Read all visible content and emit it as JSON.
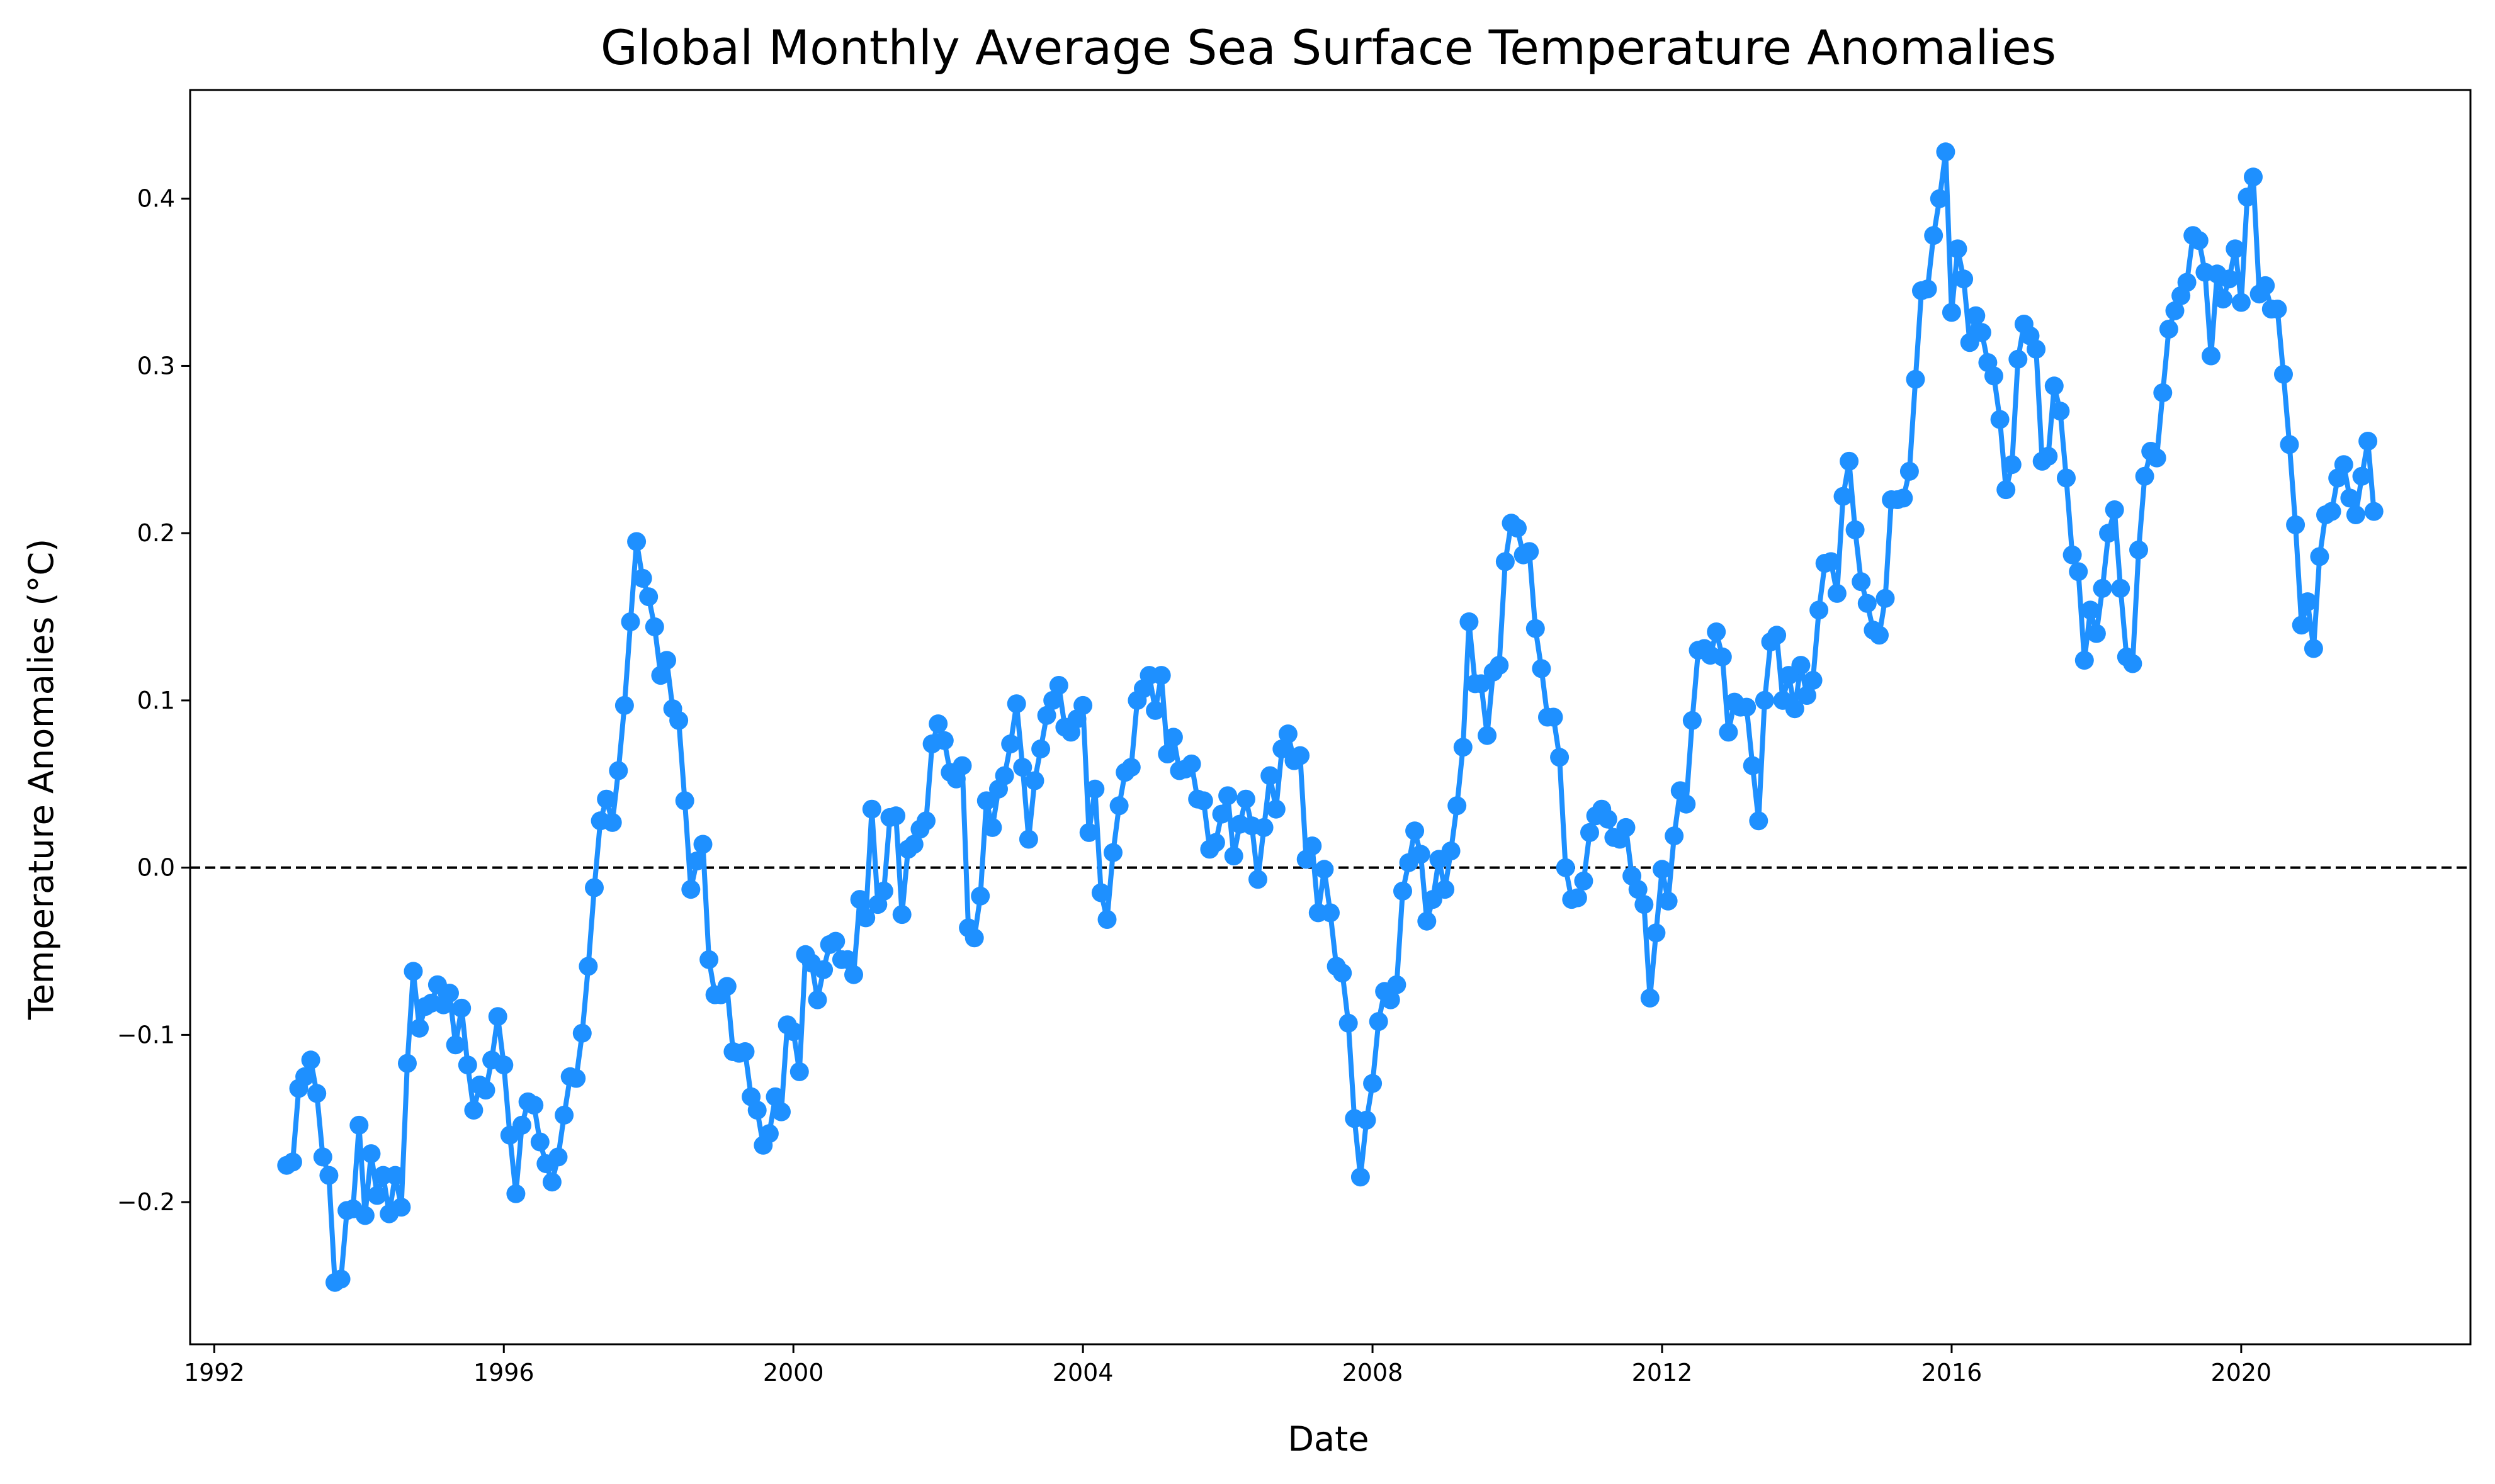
{
  "chart_data": {
    "type": "line",
    "title": "Global Monthly Average Sea Surface Temperature Anomalies",
    "xlabel": "Date",
    "ylabel": "Temperature Anomalies (°C)",
    "xlim": [
      "1991-09",
      "2023-03"
    ],
    "ylim": [
      -0.285,
      0.465
    ],
    "x_ticks": [
      1992,
      1996,
      2000,
      2004,
      2008,
      2012,
      2016,
      2020
    ],
    "x_tick_labels": [
      "1992",
      "1996",
      "2000",
      "2004",
      "2008",
      "2012",
      "2016",
      "2020"
    ],
    "y_ticks": [
      -0.2,
      -0.1,
      0.0,
      0.1,
      0.2,
      0.3,
      0.4
    ],
    "y_tick_labels": [
      "−0.2",
      "−0.1",
      "0.0",
      "0.1",
      "0.2",
      "0.3",
      "0.4"
    ],
    "reference_line": {
      "y": 0.0,
      "style": "dashed",
      "color": "#000000"
    },
    "grid": false,
    "legend": "none",
    "colors": {
      "series": "#1e90ff"
    },
    "series": [
      {
        "start": "1993-01",
        "frequency": "monthly",
        "values": [
          -0.178,
          -0.176,
          -0.132,
          -0.125,
          -0.115,
          -0.135,
          -0.173,
          -0.184,
          -0.248,
          -0.246,
          -0.205,
          -0.204,
          -0.154,
          -0.208,
          -0.171,
          -0.196,
          -0.184,
          -0.207,
          -0.184,
          -0.203,
          -0.117,
          -0.062,
          -0.096,
          -0.083,
          -0.081,
          -0.07,
          -0.082,
          -0.075,
          -0.106,
          -0.084,
          -0.118,
          -0.145,
          -0.13,
          -0.133,
          -0.115,
          -0.089,
          -0.118,
          -0.16,
          -0.195,
          -0.154,
          -0.14,
          -0.142,
          -0.164,
          -0.177,
          -0.188,
          -0.173,
          -0.148,
          -0.125,
          -0.126,
          -0.099,
          -0.059,
          -0.012,
          0.028,
          0.041,
          0.027,
          0.058,
          0.097,
          0.147,
          0.195,
          0.173,
          0.162,
          0.144,
          0.115,
          0.124,
          0.095,
          0.088,
          0.04,
          -0.013,
          0.004,
          0.014,
          -0.055,
          -0.076,
          -0.076,
          -0.071,
          -0.11,
          -0.111,
          -0.11,
          -0.137,
          -0.145,
          -0.166,
          -0.159,
          -0.137,
          -0.146,
          -0.094,
          -0.098,
          -0.122,
          -0.052,
          -0.057,
          -0.079,
          -0.061,
          -0.046,
          -0.044,
          -0.055,
          -0.055,
          -0.064,
          -0.019,
          -0.03,
          0.035,
          -0.022,
          -0.014,
          0.03,
          0.031,
          -0.028,
          0.011,
          0.014,
          0.023,
          0.028,
          0.074,
          0.086,
          0.076,
          0.057,
          0.053,
          0.061,
          -0.036,
          -0.042,
          -0.017,
          0.04,
          0.024,
          0.047,
          0.055,
          0.074,
          0.098,
          0.06,
          0.017,
          0.052,
          0.071,
          0.091,
          0.1,
          0.109,
          0.084,
          0.081,
          0.089,
          0.097,
          0.021,
          0.047,
          -0.015,
          -0.031,
          0.009,
          0.037,
          0.057,
          0.06,
          0.1,
          0.107,
          0.115,
          0.094,
          0.115,
          0.068,
          0.078,
          0.058,
          0.059,
          0.062,
          0.041,
          0.04,
          0.011,
          0.015,
          0.032,
          0.043,
          0.007,
          0.026,
          0.041,
          0.025,
          -0.007,
          0.024,
          0.055,
          0.035,
          0.071,
          0.08,
          0.064,
          0.067,
          0.005,
          0.013,
          -0.027,
          -0.001,
          -0.027,
          -0.059,
          -0.063,
          -0.093,
          -0.15,
          -0.185,
          -0.151,
          -0.129,
          -0.092,
          -0.074,
          -0.079,
          -0.07,
          -0.014,
          0.003,
          0.022,
          0.008,
          -0.032,
          -0.019,
          0.005,
          -0.013,
          0.01,
          0.037,
          0.072,
          0.147,
          0.11,
          0.11,
          0.079,
          0.117,
          0.121,
          0.183,
          0.206,
          0.203,
          0.187,
          0.189,
          0.143,
          0.119,
          0.09,
          0.09,
          0.066,
          0.0,
          -0.019,
          -0.018,
          -0.008,
          0.021,
          0.031,
          0.035,
          0.029,
          0.018,
          0.017,
          0.024,
          -0.005,
          -0.013,
          -0.022,
          -0.078,
          -0.039,
          -0.001,
          -0.02,
          0.019,
          0.046,
          0.038,
          0.088,
          0.13,
          0.131,
          0.127,
          0.141,
          0.126,
          0.081,
          0.099,
          0.096,
          0.096,
          0.061,
          0.028,
          0.1,
          0.135,
          0.139,
          0.1,
          0.115,
          0.095,
          0.121,
          0.103,
          0.112,
          0.154,
          0.182,
          0.183,
          0.164,
          0.222,
          0.243,
          0.202,
          0.171,
          0.158,
          0.142,
          0.139,
          0.161,
          0.22,
          0.22,
          0.221,
          0.237,
          0.292,
          0.345,
          0.346,
          0.378,
          0.4,
          0.428,
          0.332,
          0.37,
          0.352,
          0.314,
          0.33,
          0.32,
          0.302,
          0.294,
          0.268,
          0.226,
          0.241,
          0.304,
          0.325,
          0.318,
          0.31,
          0.243,
          0.246,
          0.288,
          0.273,
          0.233,
          0.187,
          0.177,
          0.124,
          0.154,
          0.14,
          0.167,
          0.2,
          0.214,
          0.167,
          0.126,
          0.122,
          0.19,
          0.234,
          0.249,
          0.245,
          0.284,
          0.322,
          0.333,
          0.342,
          0.35,
          0.378,
          0.375,
          0.356,
          0.306,
          0.355,
          0.34,
          0.352,
          0.37,
          0.338,
          0.401,
          0.413,
          0.343,
          0.348,
          0.334,
          0.334,
          0.295,
          0.253,
          0.205,
          0.145,
          0.159,
          0.131,
          0.186,
          0.211,
          0.213,
          0.233,
          0.241,
          0.221,
          0.211,
          0.234,
          0.255,
          0.213
        ]
      }
    ]
  }
}
